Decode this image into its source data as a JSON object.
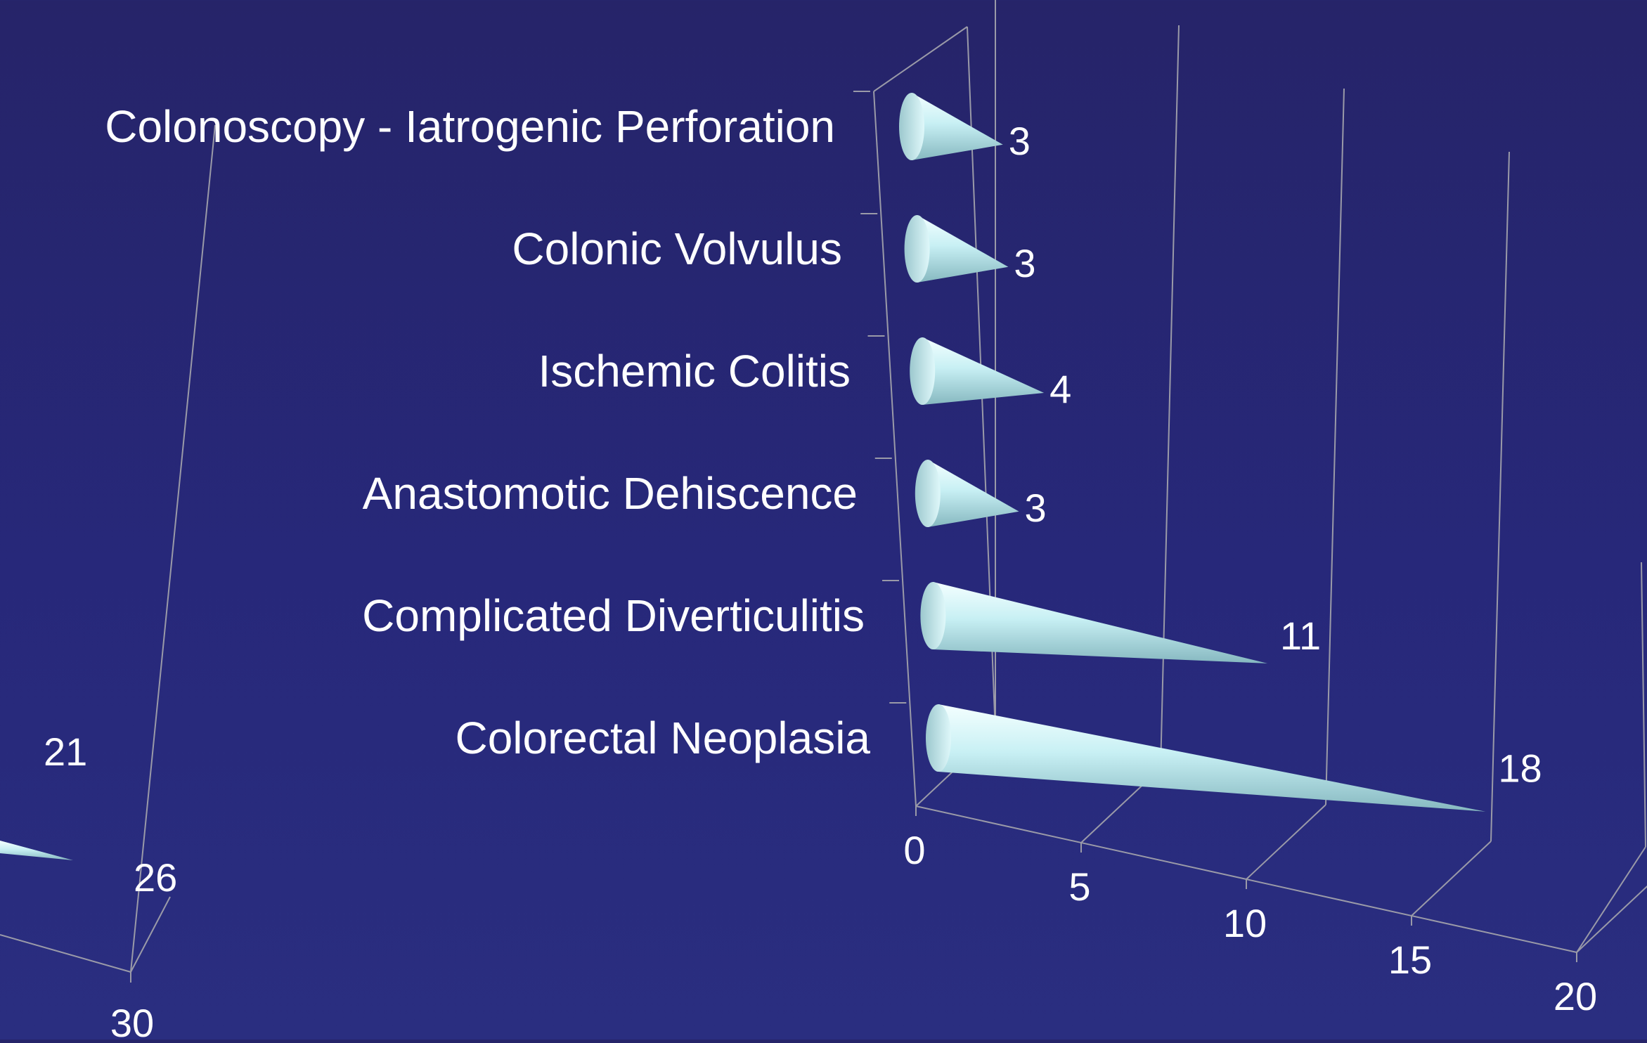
{
  "chart_data": [
    {
      "type": "bar",
      "orientation": "horizontal",
      "mark_shape": "cone",
      "categories": [
        "Colonoscopy - Iatrogenic Perforation",
        "Colonic Volvulus",
        "Ischemic Colitis",
        "Anastomotic Dehiscence",
        "Complicated Diverticulitis",
        "Colorectal Neoplasia"
      ],
      "values": [
        3,
        3,
        4,
        3,
        11,
        18
      ],
      "data_labels": [
        "3",
        "3",
        "4",
        "3",
        "11",
        "18"
      ],
      "x_ticks": [
        "0",
        "5",
        "10",
        "15",
        "20"
      ],
      "xlim": [
        0,
        20
      ],
      "grid": true,
      "colors": {
        "cone": "#c8f0f4",
        "cone_shade": "#7fb0b8",
        "background": "#27287a",
        "grid": "#9a9aa8",
        "text": "#ffffff"
      }
    },
    {
      "type": "bar",
      "orientation": "horizontal",
      "mark_shape": "cone",
      "partially_visible": true,
      "values": [
        21
      ],
      "data_labels": [
        "21"
      ],
      "x_ticks": [
        "26",
        "30"
      ],
      "grid": true
    }
  ]
}
